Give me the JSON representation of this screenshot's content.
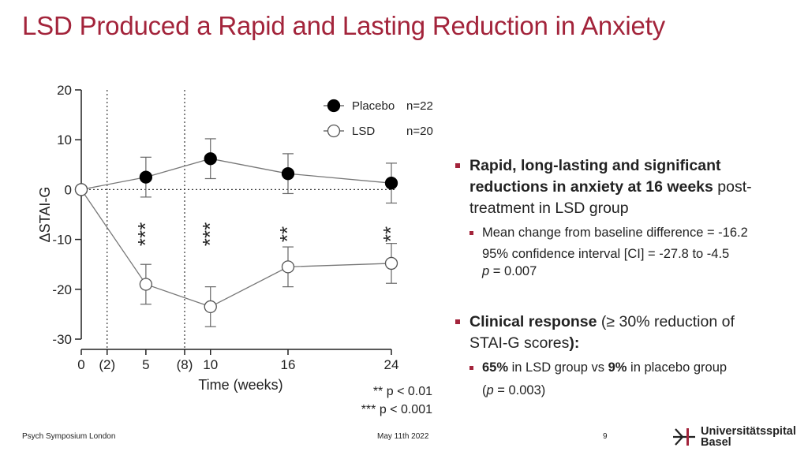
{
  "slide": {
    "title": "LSD Produced a Rapid and Lasting Reduction in Anxiety",
    "footer_left": "Psych Symposium London",
    "footer_center": "May 11th 2022",
    "page_number": "9",
    "logo_line1": "Universitätsspital",
    "logo_line2": "Basel",
    "accent_color": "#a3243b"
  },
  "chart_data": {
    "type": "line",
    "ylabel": "ΔSTAI-G",
    "xlabel": "Time (weeks)",
    "ylim": [
      -30,
      20
    ],
    "yticks": [
      20,
      10,
      0,
      -10,
      -20,
      -30
    ],
    "xlim": [
      0,
      24
    ],
    "xticks": [
      {
        "x": 0,
        "label": "0"
      },
      {
        "x": 2,
        "label": "(2)"
      },
      {
        "x": 5,
        "label": "5"
      },
      {
        "x": 8,
        "label": "(8)"
      },
      {
        "x": 10,
        "label": "10"
      },
      {
        "x": 16,
        "label": "16"
      },
      {
        "x": 24,
        "label": "24"
      }
    ],
    "reference_lines_x": [
      2,
      8
    ],
    "reference_line_y": 0,
    "series": [
      {
        "name": "Placebo",
        "n_label": "n=22",
        "marker": "filled",
        "points": [
          {
            "x": 0,
            "y": 0,
            "err": 0
          },
          {
            "x": 5,
            "y": 2.5,
            "err": 4
          },
          {
            "x": 10,
            "y": 6.2,
            "err": 4
          },
          {
            "x": 16,
            "y": 3.2,
            "err": 4
          },
          {
            "x": 24,
            "y": 1.3,
            "err": 4
          }
        ]
      },
      {
        "name": "LSD",
        "n_label": "n=20",
        "marker": "open",
        "points": [
          {
            "x": 0,
            "y": 0,
            "err": 0
          },
          {
            "x": 5,
            "y": -19,
            "err": 4
          },
          {
            "x": 10,
            "y": -23.5,
            "err": 4
          },
          {
            "x": 16,
            "y": -15.5,
            "err": 4
          },
          {
            "x": 24,
            "y": -14.8,
            "err": 4
          }
        ]
      }
    ],
    "annotations": [
      {
        "x": 5,
        "text": "***"
      },
      {
        "x": 10,
        "text": "***"
      },
      {
        "x": 16,
        "text": "**"
      },
      {
        "x": 24,
        "text": "**"
      }
    ],
    "significance_legend": [
      "** p < 0.01",
      "*** p < 0.001"
    ]
  },
  "bullets": {
    "b1_bold1": "Rapid, long-lasting and significant",
    "b1_bold2": "reductions in anxiety at 16 weeks",
    "b1_rest1": " post-",
    "b1_rest2": "treatment in LSD group",
    "b1_sub": "Mean change from baseline difference = -16.2",
    "b1_ci": "95% confidence interval [CI] = -27.8 to -4.5",
    "b1_p_italic": "p",
    "b1_p_val": " = 0.007",
    "b2_bold": "Clinical response",
    "b2_rest1": " (≥ 30% reduction of",
    "b2_rest2": "STAI-G scores",
    "b2_rest2_colon": "):",
    "b2_sub_bold1": "65%",
    "b2_sub_mid": " in LSD group vs ",
    "b2_sub_bold2": "9%",
    "b2_sub_end": " in placebo group",
    "b2_p_open": "(",
    "b2_p_italic": "p",
    "b2_p_val": " = 0.003)"
  }
}
